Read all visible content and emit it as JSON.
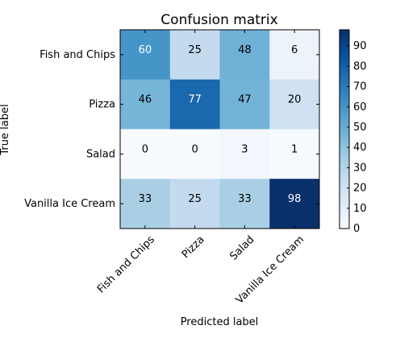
{
  "chart_data": {
    "type": "heatmap",
    "title": "Confusion matrix",
    "xlabel": "Predicted label",
    "ylabel": "True label",
    "x_categories": [
      "Fish and Chips",
      "Pizza",
      "Salad",
      "Vanilla Ice Cream"
    ],
    "y_categories": [
      "Fish and Chips",
      "Pizza",
      "Salad",
      "Vanilla Ice Cream"
    ],
    "values": [
      [
        60,
        25,
        48,
        6
      ],
      [
        46,
        77,
        47,
        20
      ],
      [
        0,
        0,
        3,
        1
      ],
      [
        33,
        25,
        33,
        98
      ]
    ],
    "colormap": "Blues",
    "color_range": [
      0,
      98
    ],
    "colorbar_ticks": [
      0,
      10,
      20,
      30,
      40,
      50,
      60,
      70,
      80,
      90
    ],
    "x_tick_rotation_deg": 45
  }
}
